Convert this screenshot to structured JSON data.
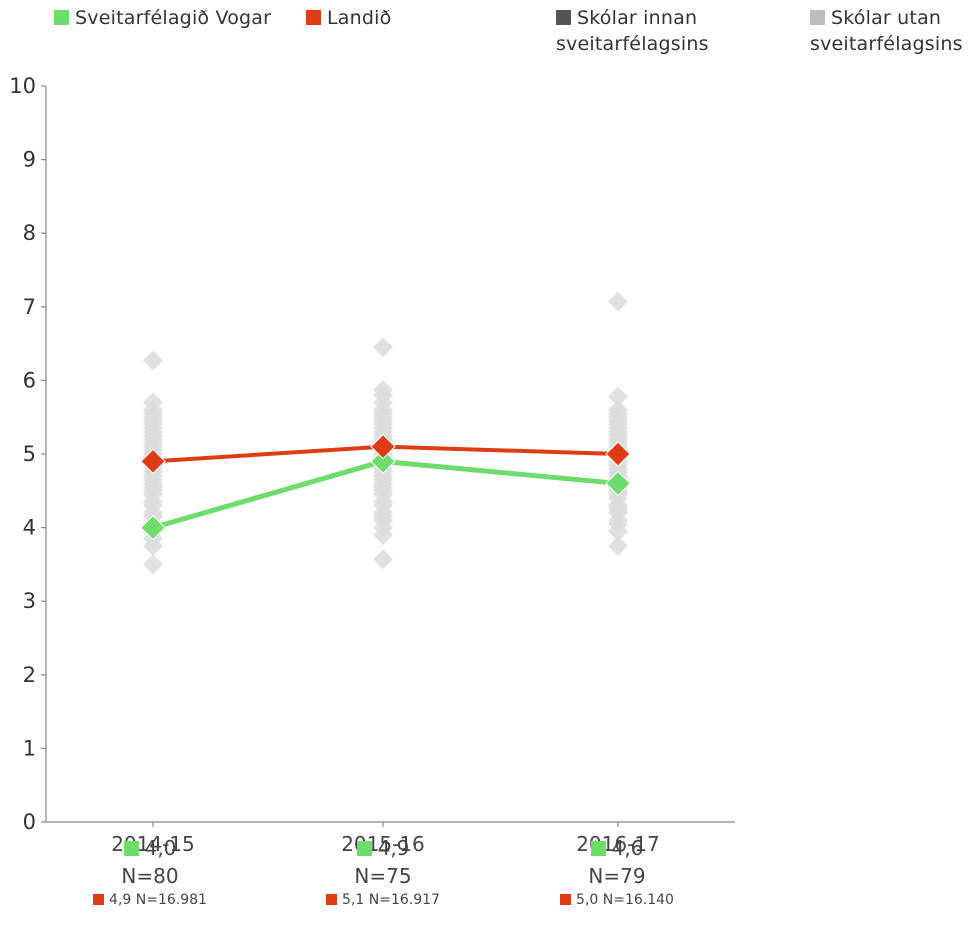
{
  "legend": [
    {
      "label": "Sveitarfélagið Vogar",
      "color": "#6ddc6d"
    },
    {
      "label": "Landið",
      "color": "#dd3c14"
    },
    {
      "label": "Skólar innan\nsveitarfélagsins",
      "color": "#555555"
    },
    {
      "label": "Skólar utan\nsveitarfélagsins",
      "color": "#bdbdbd"
    }
  ],
  "chart_data": {
    "type": "line",
    "categories": [
      "2014-15",
      "2015-16",
      "2016-17"
    ],
    "ylim": [
      0,
      10
    ],
    "yticks": [
      "0",
      "1",
      "2",
      "3",
      "4",
      "5",
      "6",
      "7",
      "8",
      "9",
      "10"
    ],
    "series": [
      {
        "name": "Sveitarfélagið Vogar",
        "color": "#6ddc6d",
        "values": [
          4.0,
          4.9,
          4.6
        ],
        "n": [
          80,
          75,
          79
        ]
      },
      {
        "name": "Landið",
        "color": "#dd3c14",
        "values": [
          4.9,
          5.1,
          5.0
        ],
        "n": [
          "16.981",
          "16.917",
          "16.140"
        ]
      }
    ],
    "scatter_other_schools": {
      "name": "Skólar utan sveitarfélagsins",
      "color": "#dcdcdc",
      "points": [
        [
          3.5,
          3.75,
          3.85,
          3.95,
          4.05,
          4.15,
          4.2,
          4.3,
          4.35,
          4.45,
          4.5,
          4.55,
          4.6,
          4.65,
          4.7,
          4.75,
          4.8,
          4.85,
          4.9,
          4.95,
          5.0,
          5.05,
          5.1,
          5.15,
          5.2,
          5.25,
          5.3,
          5.35,
          5.4,
          5.45,
          5.5,
          5.55,
          5.6,
          5.7,
          6.27
        ],
        [
          3.57,
          3.9,
          4.0,
          4.1,
          4.15,
          4.2,
          4.3,
          4.35,
          4.45,
          4.5,
          4.55,
          4.6,
          4.65,
          4.7,
          4.75,
          4.8,
          4.85,
          4.9,
          4.95,
          5.0,
          5.05,
          5.1,
          5.15,
          5.2,
          5.25,
          5.3,
          5.35,
          5.4,
          5.45,
          5.5,
          5.55,
          5.6,
          5.7,
          5.8,
          5.87,
          6.45
        ],
        [
          3.75,
          3.95,
          4.05,
          4.1,
          4.2,
          4.25,
          4.3,
          4.4,
          4.45,
          4.5,
          4.55,
          4.6,
          4.65,
          4.7,
          4.75,
          4.8,
          4.85,
          4.9,
          4.95,
          5.0,
          5.05,
          5.1,
          5.15,
          5.2,
          5.25,
          5.3,
          5.35,
          5.4,
          5.45,
          5.5,
          5.55,
          5.6,
          5.78,
          7.07
        ]
      ]
    }
  },
  "stats": [
    {
      "value": "4,0",
      "n_label": "N=80",
      "land": "4,9 N=16.981"
    },
    {
      "value": "4,9",
      "n_label": "N=75",
      "land": "5,1 N=16.917"
    },
    {
      "value": "4,6",
      "n_label": "N=79",
      "land": "5,0 N=16.140"
    }
  ]
}
